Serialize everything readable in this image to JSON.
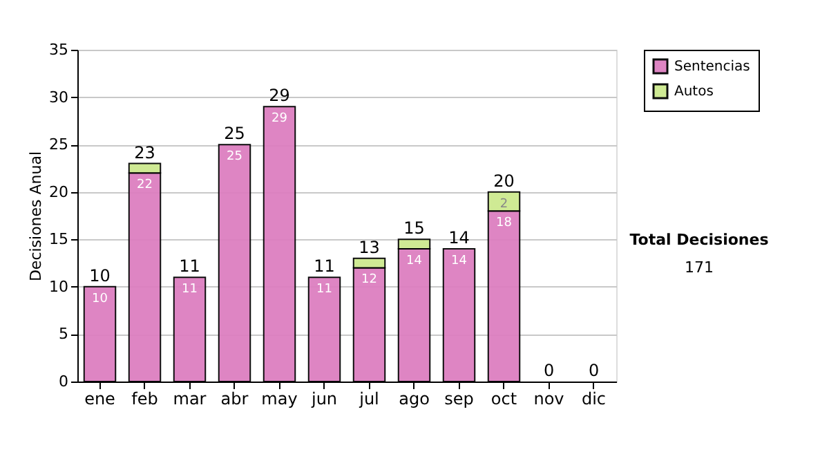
{
  "chart_data": {
    "type": "bar",
    "stacked": true,
    "ylabel": "Decisiones Anual",
    "categories": [
      "ene",
      "feb",
      "mar",
      "abr",
      "may",
      "jun",
      "jul",
      "ago",
      "sep",
      "oct",
      "nov",
      "dic"
    ],
    "series": [
      {
        "name": "Sentencias",
        "color": "#dd7fc0",
        "values": [
          10,
          22,
          11,
          25,
          29,
          11,
          12,
          14,
          14,
          18,
          0,
          0
        ],
        "value_labels": [
          "10",
          "22",
          "11",
          "25",
          "29",
          "11",
          "12",
          "14",
          "14",
          "18",
          null,
          null
        ]
      },
      {
        "name": "Autos",
        "color": "#cde98f",
        "values": [
          0,
          1,
          0,
          0,
          0,
          0,
          1,
          1,
          0,
          2,
          0,
          0
        ],
        "value_labels": [
          null,
          null,
          null,
          null,
          null,
          null,
          null,
          null,
          null,
          "2",
          null,
          null
        ]
      }
    ],
    "totals": [
      "10",
      "23",
      "11",
      "25",
      "29",
      "11",
      "13",
      "15",
      "14",
      "20",
      "0",
      "0"
    ],
    "ylim": [
      0,
      35
    ],
    "yticks": [
      0,
      5,
      10,
      15,
      20,
      25,
      30,
      35
    ],
    "grid": "y",
    "legend": "right",
    "annotations": [
      "Total Decisiones",
      "171"
    ]
  }
}
